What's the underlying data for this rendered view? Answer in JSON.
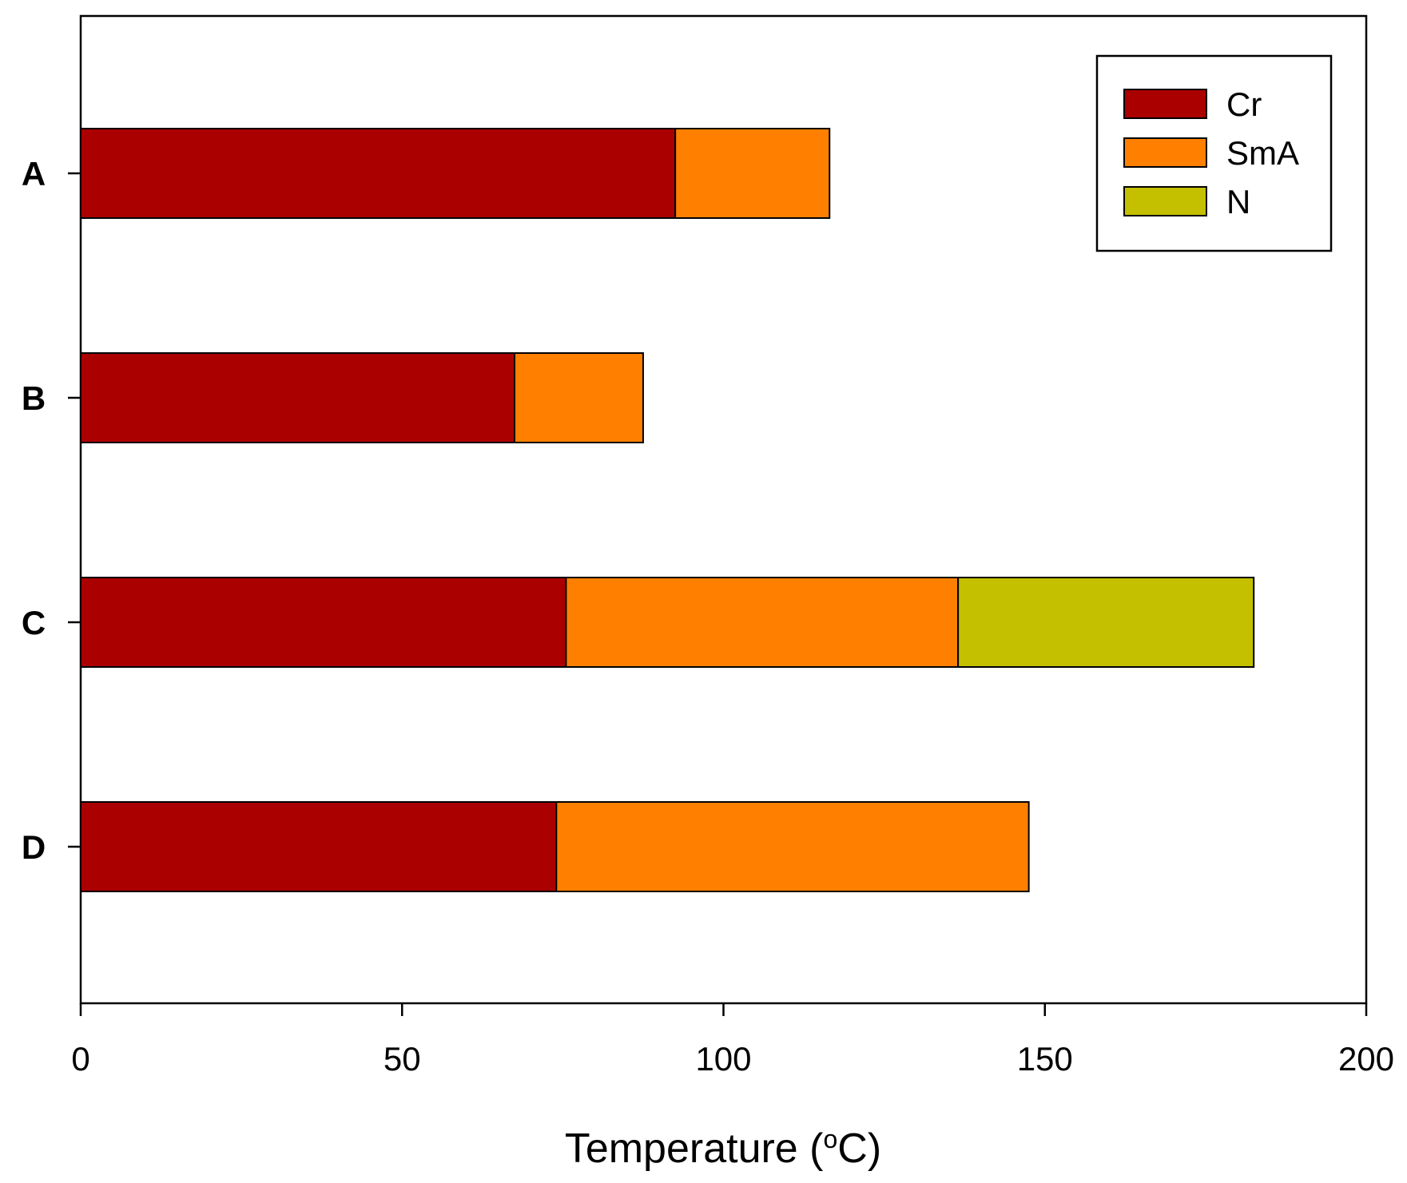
{
  "chart_data": {
    "type": "bar",
    "orientation": "horizontal",
    "stacked": true,
    "categories": [
      "A",
      "B",
      "C",
      "D"
    ],
    "series": [
      {
        "name": "Cr",
        "color": "#AA0000",
        "values": [
          92.5,
          67.5,
          75.5,
          74
        ]
      },
      {
        "name": "SmA",
        "color": "#FF8000",
        "values": [
          24,
          20,
          61,
          73.5
        ]
      },
      {
        "name": "N",
        "color": "#C4C000",
        "values": [
          0,
          0,
          46,
          0
        ]
      }
    ],
    "xlim": [
      0,
      200
    ],
    "xticks": [
      "0",
      "50",
      "100",
      "150",
      "200"
    ],
    "xlabel_main": "Temperature (",
    "xlabel_sup": "o",
    "xlabel_end": "C)",
    "ylabel": "",
    "title": "",
    "grid": false,
    "legend_position": "top-right"
  }
}
